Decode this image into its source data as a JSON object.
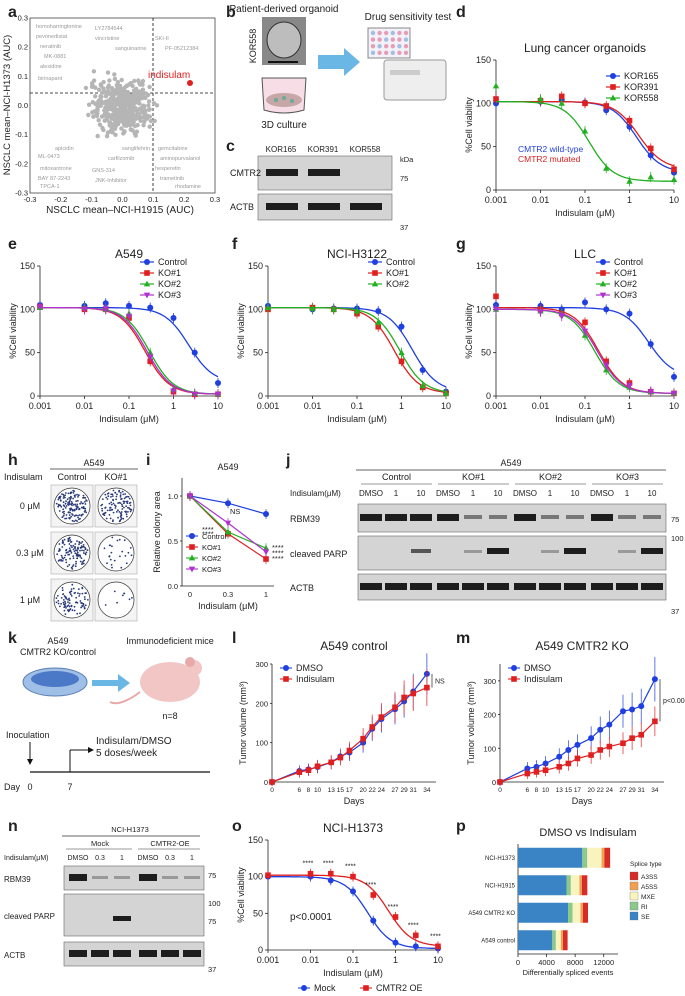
{
  "panels": {
    "a": {
      "label": "a",
      "xlabel": "NSCLC mean–NCI-H1915 (AUC)",
      "ylabel": "NSCLC mean–NCI-H1373 (AUC)",
      "highlight": "indisulam",
      "xticks": [
        "-0.3",
        "-0.2",
        "-0.1",
        "0.0",
        "0.1",
        "0.2",
        "0.3"
      ],
      "yticks": [
        "-0.3",
        "-0.2",
        "-0.1",
        "0.0",
        "0.1",
        "0.2",
        "0.3"
      ],
      "gray_labels": [
        "homoharringtonine",
        "pevonedistat",
        "neratinib",
        "MK-0881",
        "alexidine",
        "birinapant",
        "LY2784544",
        "vincristine",
        "sanguinarine",
        "carfilzomib",
        "mitoxantrone",
        "BAY 87-2243",
        "ML-0473",
        "TPCA-1",
        "GNS-314",
        "JNK-Inhibitor",
        "SKI-II",
        "PF-05212384",
        "hesperetin",
        "trametinib",
        "aminopurvalanol",
        "apicidin",
        "gemcitabine",
        "rhodamine",
        "sanglifehrin"
      ]
    },
    "b": {
      "label": "b",
      "organoid_title": "Patient-derived organoid",
      "side": "KOR558",
      "culture": "3D culture",
      "test": "Drug sensitivity test"
    },
    "c": {
      "label": "c",
      "lanes": [
        "KOR165",
        "KOR391",
        "KOR558"
      ],
      "kda": "kDa",
      "rows": [
        "CMTR2",
        "ACTB"
      ],
      "markers": [
        "75",
        "37"
      ]
    },
    "d": {
      "label": "d",
      "title": "Lung cancer organoids",
      "legend": [
        "KOR165",
        "KOR391",
        "KOR558"
      ],
      "note_wt": "CMTR2 wild-type",
      "note_mut": "CMTR2 mutated",
      "xlabel": "Indisulam (μM)",
      "ylabel": "%Cell viability"
    },
    "e": {
      "label": "e",
      "title": "A549",
      "legend": [
        "Control",
        "KO#1",
        "KO#2",
        "KO#3"
      ],
      "xlabel": "Indisulam (μM)",
      "ylabel": "%Cell viability"
    },
    "f": {
      "label": "f",
      "title": "NCI-H3122",
      "legend": [
        "Control",
        "KO#1",
        "KO#2"
      ],
      "xlabel": "Indisulam (μM)",
      "ylabel": "%Cell viability"
    },
    "g": {
      "label": "g",
      "title": "LLC",
      "legend": [
        "Control",
        "KO#1",
        "KO#2",
        "KO#3"
      ],
      "xlabel": "Indisulam (μM)",
      "ylabel": "%Cell viability"
    },
    "h": {
      "label": "h",
      "title": "A549",
      "axis_label": "Indisulam",
      "columns": [
        "Control",
        "KO#1"
      ],
      "rows": [
        "0 μM",
        "0.3 μM",
        "1 μM"
      ]
    },
    "i": {
      "label": "i",
      "title": "A549",
      "legend": [
        "Control",
        "KO#1",
        "KO#2",
        "KO#3"
      ],
      "xlabel": "Indisulam (μM)",
      "ylabel": "Relative colony area",
      "ns": "NS",
      "stars": "****"
    },
    "j": {
      "label": "j",
      "title": "A549",
      "groups": [
        "Control",
        "KO#1",
        "KO#2",
        "KO#3"
      ],
      "conc_label": "Indisulam(μM)",
      "lanes": [
        "DMSO",
        "1",
        "10"
      ],
      "rows": [
        "RBM39",
        "cleaved PARP",
        "ACTB"
      ],
      "markers": [
        "75",
        "100",
        "37"
      ]
    },
    "k": {
      "label": "k",
      "cells": "A549\nCMTR2 KO/control",
      "mice": "Immunodeficient mice",
      "n": "n=8",
      "inoculation": "Inoculation",
      "treatment": "Indisulam/DMSO\n5 doses/week",
      "day": "Day",
      "d0": "0",
      "d7": "7"
    },
    "l": {
      "label": "l",
      "title": "A549 control",
      "legend": [
        "DMSO",
        "Indisulam"
      ],
      "xlabel": "Days",
      "ylabel": "Tumor volume (mm³)",
      "sig": "NS"
    },
    "m": {
      "label": "m",
      "title": "A549 CMTR2 KO",
      "legend": [
        "DMSO",
        "Indisulam"
      ],
      "xlabel": "Days",
      "ylabel": "Tumor volume (mm³)",
      "sig": "p<0.0001"
    },
    "n": {
      "label": "n",
      "title": "NCI-H1373",
      "groups": [
        "Mock",
        "CMTR2-OE"
      ],
      "conc_label": "Indisulam(μM)",
      "lanes": [
        "DMSO",
        "0.3",
        "1"
      ],
      "rows": [
        "RBM39",
        "cleaved PARP",
        "ACTB"
      ],
      "markers": [
        "75",
        "100",
        "75",
        "37"
      ]
    },
    "o": {
      "label": "o",
      "title": "NCI-H1373",
      "legend": [
        "Mock",
        "CMTR2 OE"
      ],
      "xlabel": "Indisulam (μM)",
      "ylabel": "%Cell viability",
      "p": "p<0.0001",
      "stars": "****"
    },
    "p": {
      "label": "p",
      "title": "DMSO vs Indisulam",
      "xlabel": "Differentially spliced events",
      "legend_title": "Splice type",
      "types": [
        "A3SS",
        "A5SS",
        "MXE",
        "RI",
        "SE"
      ],
      "categories": [
        "NCI-H1373",
        "NCI-H1915",
        "A549 CMTR2 KO",
        "A549 control"
      ]
    }
  },
  "colors": {
    "blue": "#1f3fe0",
    "red": "#e02020",
    "green": "#22b022",
    "purple": "#b030d0",
    "gray": "#b0b0b0",
    "highlight": "#e02020"
  },
  "chart_data": [
    {
      "type": "scatter",
      "panel": "a",
      "xlim": [
        -0.3,
        0.3
      ],
      "ylim": [
        -0.3,
        0.3
      ],
      "highlight": {
        "name": "indisulam",
        "x": 0.2,
        "y": 0.14
      }
    },
    {
      "type": "line",
      "panel": "d",
      "x": [
        0.001,
        0.01,
        0.03,
        0.1,
        0.3,
        1,
        3,
        10
      ],
      "series": [
        {
          "name": "KOR165",
          "values": [
            100,
            102,
            104,
            101,
            92,
            73,
            40,
            20
          ]
        },
        {
          "name": "KOR391",
          "values": [
            105,
            103,
            108,
            100,
            97,
            80,
            48,
            24
          ]
        },
        {
          "name": "KOR558",
          "values": [
            120,
            105,
            100,
            68,
            25,
            10,
            15,
            12
          ]
        }
      ]
    },
    {
      "type": "line",
      "panel": "e",
      "x": [
        0.001,
        0.01,
        0.03,
        0.1,
        0.3,
        1,
        3,
        10
      ],
      "series": [
        {
          "name": "Control",
          "values": [
            105,
            104,
            107,
            104,
            102,
            90,
            50,
            15
          ]
        },
        {
          "name": "KO#1",
          "values": [
            103,
            100,
            100,
            90,
            40,
            5,
            2,
            2
          ]
        },
        {
          "name": "KO#2",
          "values": [
            102,
            102,
            100,
            95,
            50,
            8,
            3,
            2
          ]
        },
        {
          "name": "KO#3",
          "values": [
            103,
            100,
            101,
            92,
            45,
            6,
            2,
            2
          ]
        }
      ]
    },
    {
      "type": "line",
      "panel": "f",
      "x": [
        0.001,
        0.01,
        0.03,
        0.1,
        0.3,
        1,
        3,
        10
      ],
      "series": [
        {
          "name": "Control",
          "values": [
            104,
            100,
            101,
            101,
            98,
            80,
            30,
            5
          ]
        },
        {
          "name": "KO#1",
          "values": [
            100,
            102,
            100,
            95,
            80,
            40,
            10,
            3
          ]
        },
        {
          "name": "KO#2",
          "values": [
            102,
            101,
            100,
            98,
            85,
            50,
            12,
            3
          ]
        }
      ]
    },
    {
      "type": "line",
      "panel": "g",
      "x": [
        0.001,
        0.01,
        0.03,
        0.1,
        0.3,
        1,
        3,
        10
      ],
      "series": [
        {
          "name": "Control",
          "values": [
            105,
            104,
            100,
            108,
            100,
            95,
            60,
            22
          ]
        },
        {
          "name": "KO#1",
          "values": [
            115,
            100,
            95,
            85,
            40,
            15,
            5,
            3
          ]
        },
        {
          "name": "KO#2",
          "values": [
            100,
            98,
            95,
            70,
            30,
            10,
            5,
            3
          ]
        },
        {
          "name": "KO#3",
          "values": [
            100,
            97,
            92,
            75,
            35,
            12,
            5,
            3
          ]
        }
      ]
    },
    {
      "type": "line",
      "panel": "i",
      "x": [
        0,
        0.3,
        1
      ],
      "series": [
        {
          "name": "Control",
          "values": [
            1.0,
            0.92,
            0.8
          ]
        },
        {
          "name": "KO#1",
          "values": [
            1.0,
            0.58,
            0.3
          ]
        },
        {
          "name": "KO#2",
          "values": [
            1.0,
            0.6,
            0.42
          ]
        },
        {
          "name": "KO#3",
          "values": [
            1.0,
            0.7,
            0.38
          ]
        }
      ]
    },
    {
      "type": "line",
      "panel": "l",
      "x": [
        0,
        6,
        8,
        10,
        13,
        15,
        17,
        20,
        22,
        24,
        27,
        29,
        31,
        34
      ],
      "series": [
        {
          "name": "DMSO",
          "values": [
            0,
            28,
            32,
            38,
            50,
            65,
            75,
            100,
            135,
            160,
            185,
            205,
            230,
            275
          ]
        },
        {
          "name": "Indisulam",
          "values": [
            0,
            25,
            30,
            40,
            50,
            62,
            80,
            110,
            140,
            165,
            190,
            215,
            225,
            240
          ]
        }
      ]
    },
    {
      "type": "line",
      "panel": "m",
      "x": [
        0,
        6,
        8,
        10,
        13,
        15,
        17,
        20,
        22,
        24,
        27,
        29,
        31,
        34
      ],
      "series": [
        {
          "name": "DMSO",
          "values": [
            0,
            40,
            45,
            55,
            75,
            95,
            110,
            130,
            155,
            170,
            210,
            215,
            225,
            305
          ]
        },
        {
          "name": "Indisulam",
          "values": [
            0,
            25,
            30,
            35,
            45,
            55,
            70,
            80,
            95,
            105,
            115,
            130,
            140,
            180
          ]
        }
      ]
    },
    {
      "type": "line",
      "panel": "o",
      "x": [
        0.001,
        0.01,
        0.03,
        0.1,
        0.3,
        1,
        3,
        10
      ],
      "series": [
        {
          "name": "Mock",
          "values": [
            100,
            100,
            95,
            80,
            40,
            10,
            5,
            2
          ]
        },
        {
          "name": "CMTR2 OE",
          "values": [
            102,
            104,
            104,
            100,
            75,
            45,
            20,
            5
          ]
        }
      ]
    },
    {
      "type": "bar",
      "panel": "p",
      "stacked": true,
      "categories": [
        "NCI-H1373",
        "NCI-H1915",
        "A549 CMTR2 KO",
        "A549 control"
      ],
      "series": [
        {
          "name": "SE",
          "values": [
            9000,
            6800,
            7000,
            4800
          ]
        },
        {
          "name": "RI",
          "values": [
            700,
            600,
            650,
            500
          ]
        },
        {
          "name": "MXE",
          "values": [
            2000,
            1200,
            1100,
            700
          ]
        },
        {
          "name": "A5SS",
          "values": [
            400,
            350,
            350,
            300
          ]
        },
        {
          "name": "A3SS",
          "values": [
            800,
            750,
            700,
            650
          ]
        }
      ],
      "xticks": [
        0,
        4000,
        8000,
        12000
      ]
    }
  ]
}
